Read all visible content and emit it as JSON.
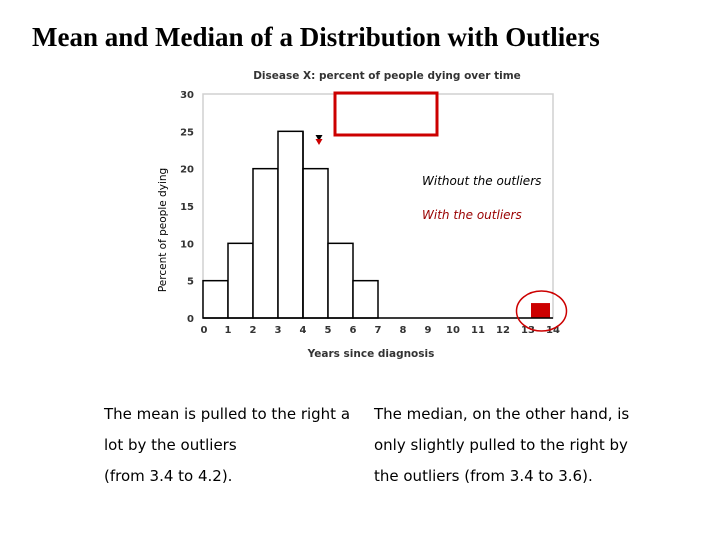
{
  "slide": {
    "title": "Mean and Median of a Distribution with Outliers"
  },
  "chart_data": {
    "type": "bar",
    "title": "Disease X: percent of people dying over time",
    "xlabel": "Years since diagnosis",
    "ylabel": "Percent of people dying",
    "x_ticks": [
      "0",
      "1",
      "2",
      "3",
      "4",
      "5",
      "6",
      "7",
      "8",
      "9",
      "10",
      "11",
      "12",
      "13",
      "14"
    ],
    "y_ticks": [
      0,
      5,
      10,
      15,
      20,
      25,
      30
    ],
    "ylim": [
      0,
      30
    ],
    "xlim": [
      0,
      14
    ],
    "grid": false,
    "series": [
      {
        "bins": [
          [
            0,
            1
          ],
          [
            1,
            2
          ],
          [
            2,
            3
          ],
          [
            3,
            4
          ],
          [
            4,
            5
          ],
          [
            5,
            6
          ],
          [
            6,
            7
          ]
        ],
        "values": [
          5,
          10,
          20,
          25,
          20,
          10,
          5
        ],
        "color": "#ffffff"
      },
      {
        "bins": [
          [
            13,
            14
          ]
        ],
        "values": [
          2
        ],
        "color": "#cc0000"
      }
    ],
    "legend": [
      {
        "label": "Without the outliers",
        "color": "#000000"
      },
      {
        "label": "With the outliers",
        "color": "#990000"
      }
    ],
    "legend_placement": "top-right",
    "center_line_x": 4,
    "markers": [
      {
        "x": 3.4,
        "color": "#000000"
      },
      {
        "x": 4.2,
        "color": "#cc0000"
      }
    ],
    "highlight_color": "#cc0000"
  },
  "captions": {
    "left": [
      "The mean is pulled to the right a",
      "lot by the outliers",
      "(from 3.4 to 4.2)."
    ],
    "right": [
      "The median, on the other hand, is",
      "only slightly pulled to the right by",
      "the outliers (from 3.4 to 3.6)."
    ]
  }
}
